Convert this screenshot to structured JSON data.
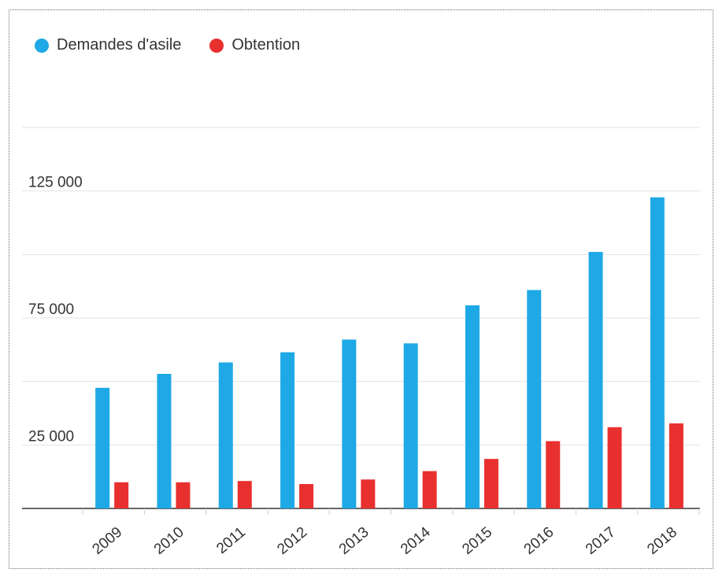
{
  "chart_data": {
    "type": "bar",
    "title": "",
    "xlabel": "",
    "ylabel": "",
    "categories": [
      "2009",
      "2010",
      "2011",
      "2012",
      "2013",
      "2014",
      "2015",
      "2016",
      "2017",
      "2018"
    ],
    "series": [
      {
        "name": "Demandes d'asile",
        "color": "#1ea9e6",
        "values": [
          47500,
          53000,
          57500,
          61500,
          66500,
          65000,
          80000,
          86000,
          101000,
          122500
        ]
      },
      {
        "name": "Obtention",
        "color": "#e8302f",
        "values": [
          10300,
          10300,
          10800,
          9600,
          11400,
          14700,
          19500,
          26500,
          32000,
          33500
        ]
      }
    ],
    "ylim": [
      0,
      150000
    ],
    "yticks_labeled": [
      "25 000",
      "75 000",
      "125 000"
    ],
    "ytick_values": [
      25000,
      75000,
      125000
    ],
    "grid": true,
    "legend_position": "top-left"
  }
}
